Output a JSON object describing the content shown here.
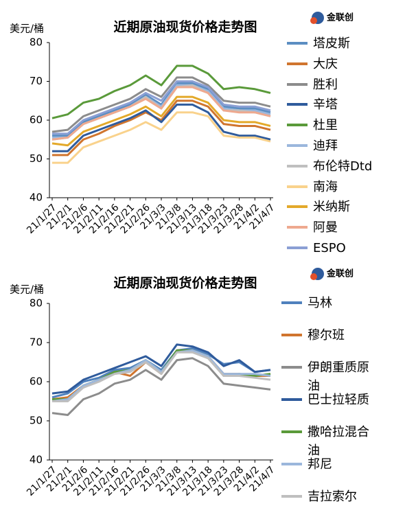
{
  "chart_data": [
    {
      "type": "line",
      "title": "近期原油现货价格走势图",
      "y_label": "美元/桶",
      "logo": "金联创",
      "categories": [
        "21/1/27",
        "21/2/1",
        "21/2/6",
        "21/2/11",
        "21/2/16",
        "21/2/21",
        "21/2/26",
        "21/3/3",
        "21/3/8",
        "21/3/13",
        "21/3/18",
        "21/3/23",
        "21/3/28",
        "21/4/2",
        "21/4/7"
      ],
      "ylim": [
        40,
        80
      ],
      "yticks": [
        40,
        50,
        60,
        70,
        80
      ],
      "grid": false,
      "series": [
        {
          "name": "塔皮斯",
          "color": "#5b8ec2",
          "values": [
            56,
            56,
            59.5,
            61,
            62.5,
            64,
            66.5,
            64,
            69.5,
            69.5,
            68,
            63.5,
            63,
            63,
            62
          ]
        },
        {
          "name": "大庆",
          "color": "#d0752e",
          "values": [
            51,
            51,
            55,
            56.5,
            58.5,
            60,
            62,
            60,
            65,
            65,
            63.5,
            59,
            58.5,
            58.5,
            57.5
          ]
        },
        {
          "name": "胜利",
          "color": "#8c8c8c",
          "values": [
            57,
            57.5,
            61,
            62.5,
            64,
            65.5,
            68,
            66,
            71,
            71,
            69,
            65,
            64.5,
            64.5,
            63.5
          ]
        },
        {
          "name": "辛塔",
          "color": "#2f5b9c",
          "values": [
            52,
            52,
            56,
            57.5,
            59,
            60.5,
            62.5,
            59.5,
            64,
            64,
            62,
            57,
            56,
            56,
            55
          ]
        },
        {
          "name": "杜里",
          "color": "#5a9a3a",
          "values": [
            60.5,
            61.5,
            64.5,
            65.5,
            67.5,
            69,
            71.5,
            69,
            74,
            74,
            72,
            68,
            68.5,
            68,
            67
          ]
        },
        {
          "name": "迪拜",
          "color": "#9bb7dc",
          "values": [
            55.5,
            55.5,
            59,
            60.5,
            62,
            63.5,
            66,
            63.5,
            69,
            69,
            67.5,
            63,
            62.5,
            62.5,
            61.5
          ]
        },
        {
          "name": "布伦特Dtd",
          "color": "#bfbfbf",
          "values": [
            55,
            55.5,
            59,
            60.5,
            62,
            63.5,
            66,
            63,
            68.5,
            69,
            67,
            62.5,
            62.5,
            62,
            61
          ]
        },
        {
          "name": "南海",
          "color": "#f9d28c",
          "values": [
            49,
            49,
            53,
            54.5,
            56,
            57.5,
            59.5,
            57.5,
            62,
            62,
            61,
            56,
            55.5,
            55.5,
            54.5
          ]
        },
        {
          "name": "米纳斯",
          "color": "#e3a92a",
          "values": [
            54,
            53.5,
            57,
            58.5,
            60,
            61.5,
            63.5,
            61,
            66,
            66,
            64.5,
            60,
            59.5,
            59.5,
            58.5
          ]
        },
        {
          "name": "阿曼",
          "color": "#eea98f",
          "values": [
            55,
            55.5,
            59,
            60.5,
            62,
            63.5,
            65.5,
            63,
            68.5,
            68.5,
            67,
            62.5,
            62,
            62,
            61
          ]
        },
        {
          "name": "ESPO",
          "color": "#8b9fd4",
          "values": [
            56.5,
            56.5,
            60,
            61.5,
            63,
            64.5,
            67,
            65,
            70,
            70,
            68.5,
            64,
            63.5,
            63.5,
            62.5
          ]
        }
      ]
    },
    {
      "type": "line",
      "title": "近期原油现货价格走势图",
      "y_label": "美元/桶",
      "logo": "金联创",
      "categories": [
        "21/1/27",
        "21/2/1",
        "21/2/6",
        "21/2/11",
        "21/2/16",
        "21/2/21",
        "21/2/26",
        "21/3/3",
        "21/3/8",
        "21/3/13",
        "21/3/18",
        "21/3/23",
        "21/3/28",
        "21/4/2",
        "21/4/7"
      ],
      "ylim": [
        40,
        80
      ],
      "yticks": [
        40,
        50,
        60,
        70,
        80
      ],
      "grid": false,
      "series": [
        {
          "name": "马林",
          "color": "#4f81bd",
          "values": [
            56,
            57,
            60,
            61,
            63,
            63.5,
            65.5,
            63,
            68,
            68.5,
            67,
            64.5,
            65,
            62.5,
            63
          ]
        },
        {
          "name": "穆尔班",
          "color": "#d0752e",
          "values": [
            55.5,
            56,
            59,
            60.5,
            62.5,
            61.5,
            65,
            62,
            68,
            68,
            66.5,
            62,
            62,
            61.5,
            61.5
          ]
        },
        {
          "name": "伊朗重质原油",
          "color": "#8c8c8c",
          "values": [
            52,
            51.5,
            55.5,
            57,
            59.5,
            60.5,
            63,
            60.5,
            65.5,
            66,
            64,
            59.5,
            59,
            58.5,
            58
          ]
        },
        {
          "name": "巴士拉轻质",
          "color": "#2f5b9c",
          "values": [
            57,
            57.5,
            60.5,
            62,
            63.5,
            65,
            66.5,
            64,
            69.5,
            69,
            67.5,
            64,
            65.5,
            62.5,
            63
          ]
        },
        {
          "name": "撒哈拉混合油",
          "color": "#5a9a3a",
          "values": [
            55.5,
            55.5,
            59,
            60.5,
            62.5,
            63,
            65.5,
            62.5,
            68,
            68,
            66.5,
            61.5,
            62,
            61.5,
            62
          ]
        },
        {
          "name": "邦尼",
          "color": "#9bb7dc",
          "values": [
            55,
            55.5,
            59,
            60.5,
            62,
            63,
            65.5,
            62.5,
            67.5,
            68,
            66.5,
            62,
            62,
            62,
            61.5
          ]
        },
        {
          "name": "吉拉索尔",
          "color": "#bfbfbf",
          "values": [
            55,
            55,
            58.5,
            60,
            62,
            62.5,
            65,
            62,
            67.5,
            67.5,
            66,
            61.5,
            61.5,
            61,
            60.5
          ]
        }
      ]
    }
  ]
}
